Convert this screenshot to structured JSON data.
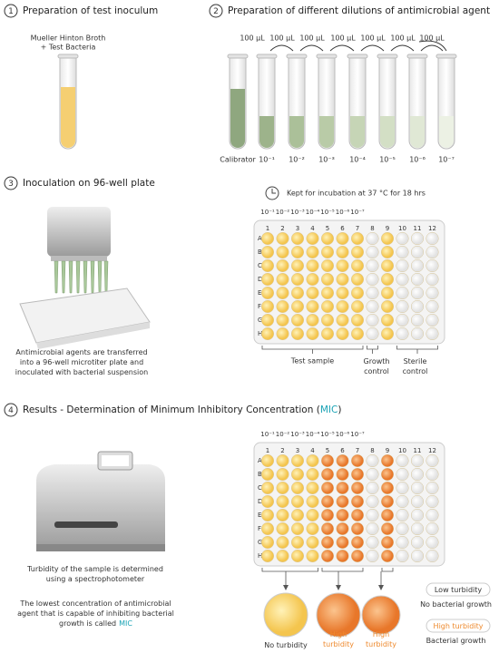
{
  "step1": {
    "number": "1",
    "title": "Preparation of test inoculum",
    "tube_label": [
      "Mueller Hinton Broth",
      "+ Test Bacteria"
    ]
  },
  "step2": {
    "number": "2",
    "title": "Preparation of different dilutions of antimicrobial agent",
    "transfers": [
      "100 µL",
      "100 µL",
      "100 µL",
      "100 µL",
      "100 µL",
      "100 µL",
      "100 µL"
    ],
    "tubes": [
      "Calibrator",
      "10⁻¹",
      "10⁻²",
      "10⁻³",
      "10⁻⁴",
      "10⁻⁵",
      "10⁻⁶",
      "10⁻⁷"
    ]
  },
  "step3": {
    "number": "3",
    "title": "Inoculation on 96-well plate",
    "incubation": "Kept for incubation at 37 °C for 18 hrs",
    "caption": "Antimicrobial agents are transferred into a 96-well microtiter plate and inoculated with bacterial suspension",
    "groups": [
      "Test sample",
      "Growth control",
      "Sterile control"
    ]
  },
  "plate": {
    "columns": [
      "1",
      "2",
      "3",
      "4",
      "5",
      "6",
      "7",
      "8",
      "9",
      "10",
      "11",
      "12"
    ],
    "rows": [
      "A",
      "B",
      "C",
      "D",
      "E",
      "F",
      "G",
      "H"
    ]
  },
  "step4": {
    "number": "4",
    "title": "Results - Determination of Minimum Inhibitory Concentration (",
    "title_mic": "MIC",
    "title_end": ")",
    "spectro_caption": "Turbidity of the sample is determined using a spectrophotometer",
    "mic_caption": "The lowest concentration of antimicrobial agent that is capable of inhibiting bacterial growth is called",
    "mic_caption_mic": "MIC",
    "results": [
      "No turbidity",
      "High turbidity",
      "High turbidity"
    ],
    "legend": [
      {
        "label": "Low turbidity",
        "meaning": "No bacterial growth"
      },
      {
        "label": "High turbidity",
        "meaning": "Bacterial growth"
      }
    ]
  }
}
